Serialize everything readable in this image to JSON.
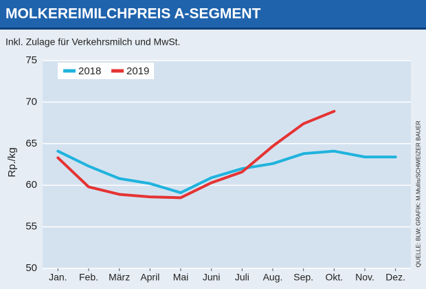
{
  "chart_data": {
    "type": "line",
    "title": "MOLKEREIMILCHPREIS A-SEGMENT",
    "subtitle": "Inkl. Zulage für Verkehrsmilch und MwSt.",
    "y_label": "Rp./kg",
    "source": "QUELLE: BLW; GRAFIK: M.Mullis/SCHWEIZER BAUER",
    "categories": [
      "Jan.",
      "Feb.",
      "März",
      "April",
      "Mai",
      "Juni",
      "Juli",
      "Aug.",
      "Sep.",
      "Okt.",
      "Nov.",
      "Dez."
    ],
    "series": [
      {
        "name": "2018",
        "color": "#1fb3dd",
        "values": [
          64.1,
          62.3,
          60.8,
          60.2,
          59.1,
          60.9,
          62.0,
          62.6,
          63.8,
          64.1,
          63.4,
          63.4
        ]
      },
      {
        "name": "2019",
        "color": "#e53333",
        "values": [
          63.3,
          59.8,
          58.9,
          58.6,
          58.5,
          60.3,
          61.6,
          64.7,
          67.4,
          68.9,
          null,
          null
        ]
      }
    ],
    "ylim": [
      50,
      75
    ],
    "yticks": [
      50,
      55,
      60,
      65,
      70,
      75
    ],
    "grid": true,
    "legend": "top-left"
  }
}
